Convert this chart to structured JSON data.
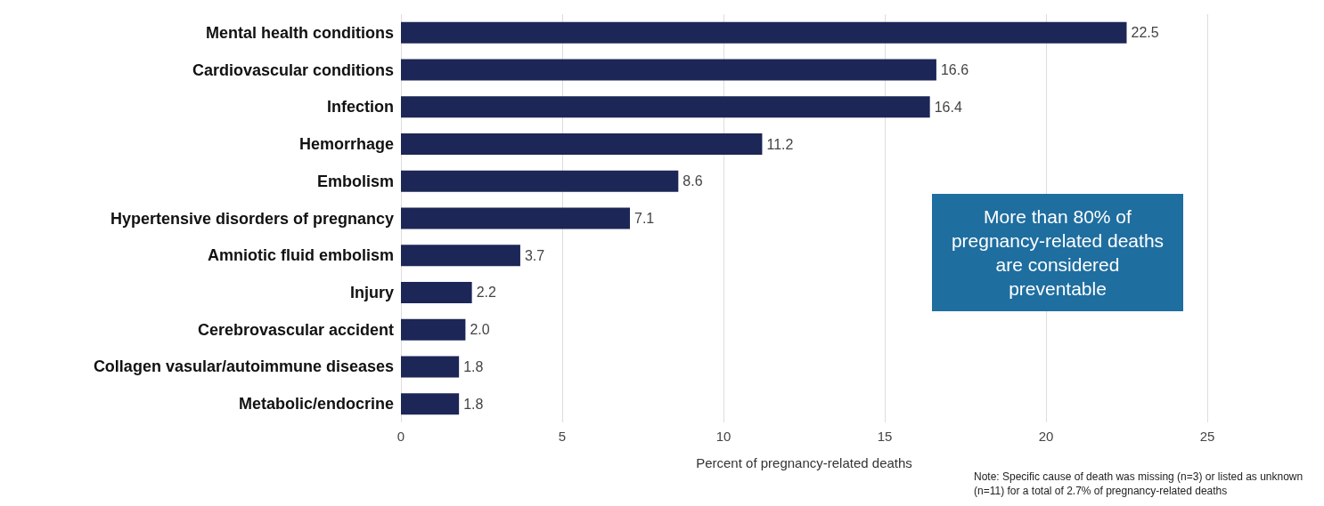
{
  "chart_data": {
    "type": "bar",
    "orientation": "horizontal",
    "categories": [
      "Mental health conditions",
      "Cardiovascular conditions",
      "Infection",
      "Hemorrhage",
      "Embolism",
      "Hypertensive disorders of pregnancy",
      "Amniotic fluid embolism",
      "Injury",
      "Cerebrovascular accident",
      "Collagen vasular/autoimmune diseases",
      "Metabolic/endocrine"
    ],
    "values": [
      22.5,
      16.6,
      16.4,
      11.2,
      8.6,
      7.1,
      3.7,
      2.2,
      2.0,
      1.8,
      1.8
    ],
    "value_labels": [
      "22.5",
      "16.6",
      "16.4",
      "11.2",
      "8.6",
      "7.1",
      "3.7",
      "2.2",
      "2.0",
      "1.8",
      "1.8"
    ],
    "color": "#1c2657",
    "xlim": [
      0,
      25
    ],
    "xticks": [
      0,
      5,
      10,
      15,
      20,
      25
    ],
    "grid": "x",
    "xlabel": "Percent of pregnancy-related deaths",
    "annotations": [
      "More than 80% of pregnancy-related deaths are considered preventable",
      "Note: Specific cause of death was missing (n=3) or listed as unknown (n=11) for a total of 2.7% of pregnancy-related deaths"
    ]
  }
}
